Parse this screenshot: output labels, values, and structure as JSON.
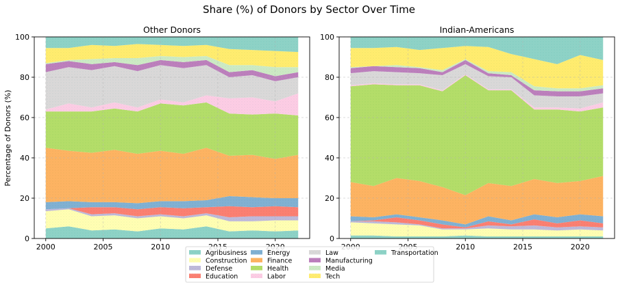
{
  "chart_data": {
    "type": "area",
    "title": "Share (%) of Donors by Sector Over Time",
    "ylabel": "Percentage of Donors (%)",
    "xlabel": "",
    "x": [
      2000,
      2002,
      2004,
      2006,
      2008,
      2010,
      2012,
      2014,
      2016,
      2018,
      2020,
      2022
    ],
    "xticks": [
      2000,
      2005,
      2010,
      2015,
      2020
    ],
    "yticks": [
      0,
      20,
      40,
      60,
      80,
      100
    ],
    "ylim": [
      0,
      100
    ],
    "xlim": [
      1999,
      2023
    ],
    "grid": true,
    "legend_position": "bottom-center",
    "sectors": [
      {
        "name": "Agribusiness",
        "color": "#8dd3c7"
      },
      {
        "name": "Construction",
        "color": "#ffffb3"
      },
      {
        "name": "Defense",
        "color": "#bebada"
      },
      {
        "name": "Education",
        "color": "#fb8072"
      },
      {
        "name": "Energy",
        "color": "#80b1d3"
      },
      {
        "name": "Finance",
        "color": "#fdb462"
      },
      {
        "name": "Health",
        "color": "#b3de69"
      },
      {
        "name": "Labor",
        "color": "#fccde5"
      },
      {
        "name": "Law",
        "color": "#d9d9d9"
      },
      {
        "name": "Manufacturing",
        "color": "#bc80bd"
      },
      {
        "name": "Media",
        "color": "#ccebc5"
      },
      {
        "name": "Tech",
        "color": "#ffed6f"
      },
      {
        "name": "Transportation",
        "color": "#8dd3c7"
      }
    ],
    "panels": [
      {
        "title": "Other Donors",
        "series": [
          {
            "name": "Agribusiness",
            "values": [
              5,
              6,
              4,
              4.5,
              3.5,
              5,
              4.5,
              6,
              3.5,
              4,
              3.5,
              4
            ]
          },
          {
            "name": "Construction",
            "values": [
              8.5,
              8.5,
              7,
              7,
              6.5,
              6,
              5.5,
              5.5,
              5,
              4.5,
              5.5,
              5
            ]
          },
          {
            "name": "Defense",
            "values": [
              1,
              0.5,
              1,
              1,
              1,
              1,
              1,
              1,
              2,
              2.5,
              2,
              2
            ]
          },
          {
            "name": "Education",
            "values": [
              0,
              0,
              3.5,
              3,
              3.5,
              3.5,
              4,
              3,
              5.5,
              4.5,
              5,
              4.5
            ]
          },
          {
            "name": "Energy",
            "values": [
              3.5,
              3.5,
              2.5,
              2.5,
              3,
              3,
              3.5,
              3.5,
              5,
              5,
              4,
              4.5
            ]
          },
          {
            "name": "Finance",
            "values": [
              27,
              25,
              24.5,
              26,
              24.5,
              25,
              23.5,
              26,
              20,
              21,
              19.5,
              21.5
            ]
          },
          {
            "name": "Health",
            "values": [
              18,
              19.5,
              20.5,
              20.5,
              21,
              23.5,
              24,
              22.5,
              21,
              20,
              22.5,
              19.5
            ]
          },
          {
            "name": "Labor",
            "values": [
              1,
              4,
              2,
              3,
              2,
              2,
              1.5,
              3.5,
              7.5,
              8.5,
              6,
              11
            ]
          },
          {
            "name": "Law",
            "values": [
              18.5,
              18,
              18.5,
              18,
              18,
              17,
              17,
              15,
              10.5,
              11,
              10,
              8
            ]
          },
          {
            "name": "Manufacturing",
            "values": [
              4,
              3,
              3,
              2,
              3,
              2.5,
              3,
              2.5,
              2.5,
              2.5,
              2.5,
              2.5
            ]
          },
          {
            "name": "Media",
            "values": [
              0.5,
              0.5,
              2.5,
              2,
              3.5,
              2,
              2.5,
              2,
              3.5,
              2.5,
              4.5,
              2.5
            ]
          },
          {
            "name": "Tech",
            "values": [
              7.5,
              6,
              7,
              6,
              7,
              5.5,
              5.5,
              5.5,
              8,
              7.5,
              8,
              7.5
            ]
          },
          {
            "name": "Transportation",
            "values": [
              5.5,
              5.5,
              4,
              4.5,
              3.5,
              4,
              4.5,
              4,
              6,
              6.5,
              7,
              7.5
            ]
          }
        ]
      },
      {
        "title": "Indian-Americans",
        "series": [
          {
            "name": "Agribusiness",
            "values": [
              1.5,
              1.5,
              1,
              1,
              1,
              1.5,
              1,
              1,
              1,
              1,
              1,
              1
            ]
          },
          {
            "name": "Construction",
            "values": [
              6.5,
              6,
              6,
              5.5,
              3.5,
              3,
              4,
              3.5,
              3.5,
              3,
              3.5,
              3
            ]
          },
          {
            "name": "Defense",
            "values": [
              0.5,
              1,
              1,
              0.5,
              0.5,
              0.5,
              1.5,
              1.5,
              2,
              1.5,
              1.5,
              1.5
            ]
          },
          {
            "name": "Education",
            "values": [
              0,
              0.5,
              2.5,
              2,
              2,
              0.5,
              2,
              1,
              3,
              2,
              3,
              2
            ]
          },
          {
            "name": "Energy",
            "values": [
              2.5,
              1.5,
              1.5,
              1.5,
              2,
              1.5,
              2.5,
              2,
              2.5,
              3,
              3,
              3.5
            ]
          },
          {
            "name": "Finance",
            "values": [
              17,
              15.5,
              18,
              18,
              16.5,
              14.5,
              16.5,
              17,
              17.5,
              17,
              16.5,
              20
            ]
          },
          {
            "name": "Health",
            "values": [
              47.5,
              50.5,
              46,
              47.5,
              47.5,
              59.5,
              46,
              47.5,
              34.5,
              36.5,
              34.5,
              34
            ]
          },
          {
            "name": "Labor",
            "values": [
              0.5,
              0.5,
              0.5,
              0.5,
              0.5,
              0.5,
              0.5,
              0.5,
              1,
              1,
              1.5,
              2.5
            ]
          },
          {
            "name": "Law",
            "values": [
              6,
              6,
              6,
              5.5,
              7.5,
              5,
              6.5,
              6,
              6,
              5.5,
              6,
              4.5
            ]
          },
          {
            "name": "Manufacturing",
            "values": [
              2.5,
              2.5,
              2.5,
              2.5,
              1.5,
              2,
              1.5,
              1,
              2.5,
              2.5,
              2.5,
              2.5
            ]
          },
          {
            "name": "Media",
            "values": [
              0.5,
              0,
              1,
              0.5,
              1,
              0.5,
              1,
              1.5,
              2,
              1.5,
              1.5,
              1.5
            ]
          },
          {
            "name": "Tech",
            "values": [
              9.5,
              9,
              9,
              8.5,
              11,
              6.5,
              12,
              9,
              13.5,
              12,
              16.5,
              12.5
            ]
          },
          {
            "name": "Transportation",
            "values": [
              5.5,
              5.5,
              5,
              6.5,
              5.5,
              4.5,
              5,
              8.5,
              11,
              13.5,
              9,
              11.5
            ]
          }
        ]
      }
    ]
  }
}
